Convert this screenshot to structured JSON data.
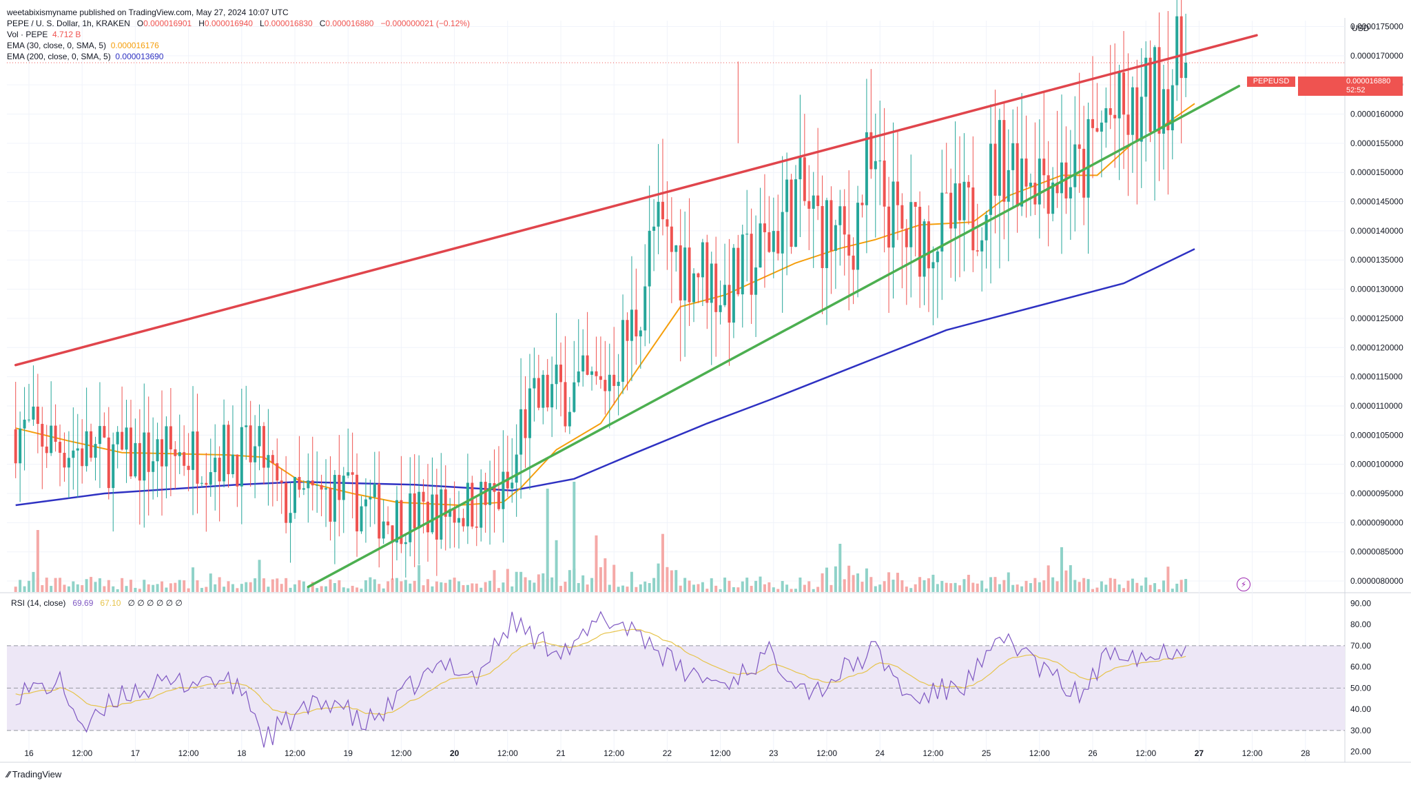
{
  "header": {
    "published": "weetabixismyname published on TradingView.com, May 27, 2024 10:07 UTC",
    "symbol_line": "PEPE / U. S. Dollar, 1h, KRAKEN",
    "ohlc": {
      "O_label": "O",
      "O": "0.000016901",
      "H_label": "H",
      "H": "0.000016940",
      "L_label": "L",
      "L": "0.000016830",
      "C_label": "C",
      "C": "0.000016880",
      "change": "−0.000000021 (−0.12%)"
    },
    "volume": {
      "label": "Vol · PEPE",
      "value": "4.712 B"
    },
    "ema30": {
      "label": "EMA (30, close, 0, SMA, 5)",
      "value": "0.000016176"
    },
    "ema200": {
      "label": "EMA (200, close, 0, SMA, 5)",
      "value": "0.000013690"
    }
  },
  "currency": "USD",
  "price_tag": {
    "symbol": "PEPEUSD",
    "value": "0.000016880",
    "countdown": "52:52"
  },
  "rsi": {
    "label": "RSI (14, close)",
    "value": "69.69",
    "ma_value": "67.10",
    "extra": "∅ ∅ ∅ ∅ ∅ ∅"
  },
  "footer": {
    "brand": "TradingView"
  },
  "colors": {
    "up": "#26a69a",
    "down": "#ef5350",
    "ema30": "#f59e0b",
    "ema200": "#2e31c2",
    "resistance": "#e0454c",
    "support": "#4caf50",
    "rsi": "#7e57c2",
    "rsi_ma": "#e6c34a",
    "vol_up": "#8fd2c8",
    "vol_down": "#f5a9a7",
    "rsi_band": "#ede7f6"
  },
  "chart_data": {
    "type": "candlestick",
    "interval": "1h",
    "y_axis": {
      "ticks": [
        "0.0000175000",
        "0.0000170000",
        "0.0000165000",
        "0.0000160000",
        "0.0000155000",
        "0.0000150000",
        "0.0000145000",
        "0.0000140000",
        "0.0000135000",
        "0.0000130000",
        "0.0000125000",
        "0.0000120000",
        "0.0000115000",
        "0.0000110000",
        "0.0000105000",
        "0.0000100000",
        "0.0000095000",
        "0.0000090000",
        "0.0000085000",
        "0.0000080000"
      ],
      "range": [
        7.8e-06,
        1.76e-05
      ]
    },
    "x_axis": {
      "ticks": [
        "16",
        "12:00",
        "17",
        "12:00",
        "18",
        "12:00",
        "19",
        "12:00",
        "20",
        "12:00",
        "21",
        "12:00",
        "22",
        "12:00",
        "23",
        "12:00",
        "24",
        "12:00",
        "25",
        "12:00",
        "26",
        "12:00",
        "27",
        "12:00",
        "28"
      ],
      "bold_ticks": [
        "20",
        "27"
      ]
    },
    "key_points": [
      {
        "t": 0,
        "price": 1.06e-05
      },
      {
        "t": 12,
        "price": 1.03e-05
      },
      {
        "t": 24,
        "price": 1.01e-05
      },
      {
        "t": 36,
        "price": 1.02e-05
      },
      {
        "t": 48,
        "price": 1.02e-05
      },
      {
        "t": 56,
        "price": 1.01e-05
      },
      {
        "t": 60,
        "price": 9.3e-06
      },
      {
        "t": 72,
        "price": 9.5e-06
      },
      {
        "t": 84,
        "price": 9.1e-06
      },
      {
        "t": 96,
        "price": 9.2e-06
      },
      {
        "t": 108,
        "price": 9.4e-06
      },
      {
        "t": 112,
        "price": 9.6e-06
      },
      {
        "t": 114,
        "price": 1.07e-05
      },
      {
        "t": 120,
        "price": 1.12e-05
      },
      {
        "t": 132,
        "price": 1.13e-05
      },
      {
        "t": 140,
        "price": 1.25e-05
      },
      {
        "t": 144,
        "price": 1.4e-05
      },
      {
        "t": 150,
        "price": 1.35e-05
      },
      {
        "t": 156,
        "price": 1.33e-05
      },
      {
        "t": 160,
        "price": 1.29e-05
      },
      {
        "t": 168,
        "price": 1.36e-05
      },
      {
        "t": 176,
        "price": 1.46e-05
      },
      {
        "t": 184,
        "price": 1.39e-05
      },
      {
        "t": 188,
        "price": 1.37e-05
      },
      {
        "t": 192,
        "price": 1.5e-05
      },
      {
        "t": 196,
        "price": 1.45e-05
      },
      {
        "t": 200,
        "price": 1.39e-05
      },
      {
        "t": 208,
        "price": 1.4e-05
      },
      {
        "t": 216,
        "price": 1.42e-05
      },
      {
        "t": 222,
        "price": 1.53e-05
      },
      {
        "t": 230,
        "price": 1.51e-05
      },
      {
        "t": 240,
        "price": 1.49e-05
      },
      {
        "t": 244,
        "price": 1.56e-05
      },
      {
        "t": 246,
        "price": 1.6e-05
      },
      {
        "t": 252,
        "price": 1.58e-05
      },
      {
        "t": 258,
        "price": 1.65e-05
      },
      {
        "t": 264,
        "price": 1.688e-05
      }
    ],
    "ema30": [
      {
        "t": 0,
        "price": 1.062e-05
      },
      {
        "t": 12,
        "price": 1.04e-05
      },
      {
        "t": 24,
        "price": 1.02e-05
      },
      {
        "t": 48,
        "price": 1.016e-05
      },
      {
        "t": 56,
        "price": 1.012e-05
      },
      {
        "t": 64,
        "price": 9.72e-06
      },
      {
        "t": 76,
        "price": 9.5e-06
      },
      {
        "t": 86,
        "price": 9.35e-06
      },
      {
        "t": 100,
        "price": 9.3e-06
      },
      {
        "t": 110,
        "price": 9.35e-06
      },
      {
        "t": 114,
        "price": 9.6e-06
      },
      {
        "t": 122,
        "price": 1.025e-05
      },
      {
        "t": 132,
        "price": 1.07e-05
      },
      {
        "t": 140,
        "price": 1.16e-05
      },
      {
        "t": 150,
        "price": 1.27e-05
      },
      {
        "t": 160,
        "price": 1.29e-05
      },
      {
        "t": 176,
        "price": 1.345e-05
      },
      {
        "t": 186,
        "price": 1.37e-05
      },
      {
        "t": 194,
        "price": 1.385e-05
      },
      {
        "t": 204,
        "price": 1.41e-05
      },
      {
        "t": 216,
        "price": 1.415e-05
      },
      {
        "t": 224,
        "price": 1.46e-05
      },
      {
        "t": 236,
        "price": 1.495e-05
      },
      {
        "t": 244,
        "price": 1.495e-05
      },
      {
        "t": 252,
        "price": 1.55e-05
      },
      {
        "t": 258,
        "price": 1.575e-05
      },
      {
        "t": 266,
        "price": 1.618e-05
      }
    ],
    "ema200": [
      {
        "t": 0,
        "price": 9.3e-06
      },
      {
        "t": 20,
        "price": 9.5e-06
      },
      {
        "t": 50,
        "price": 9.65e-06
      },
      {
        "t": 64,
        "price": 9.7e-06
      },
      {
        "t": 90,
        "price": 9.65e-06
      },
      {
        "t": 112,
        "price": 9.55e-06
      },
      {
        "t": 126,
        "price": 9.75e-06
      },
      {
        "t": 140,
        "price": 1.02e-05
      },
      {
        "t": 156,
        "price": 1.07e-05
      },
      {
        "t": 170,
        "price": 1.11e-05
      },
      {
        "t": 190,
        "price": 1.17e-05
      },
      {
        "t": 210,
        "price": 1.23e-05
      },
      {
        "t": 230,
        "price": 1.27e-05
      },
      {
        "t": 250,
        "price": 1.31e-05
      },
      {
        "t": 266,
        "price": 1.369e-05
      }
    ],
    "trendlines": [
      {
        "name": "resistance",
        "from": {
          "t": 0,
          "price": 1.17e-05
        },
        "to": {
          "t": 280,
          "price": 1.735e-05
        }
      },
      {
        "name": "support",
        "from": {
          "t": 66,
          "price": 7.9e-06
        },
        "to": {
          "t": 276,
          "price": 1.648e-05
        }
      }
    ],
    "spike": {
      "t": 163,
      "high": 1.69e-05
    },
    "rsi_panel": {
      "ticks": [
        "90.00",
        "80.00",
        "70.00",
        "60.00",
        "50.00",
        "40.00",
        "30.00",
        "20.00"
      ],
      "overbought": 70,
      "middle": 50,
      "oversold": 30,
      "key_points": [
        {
          "t": 0,
          "rsi": 48
        },
        {
          "t": 10,
          "rsi": 52
        },
        {
          "t": 16,
          "rsi": 30
        },
        {
          "t": 24,
          "rsi": 48
        },
        {
          "t": 36,
          "rsi": 52
        },
        {
          "t": 44,
          "rsi": 55
        },
        {
          "t": 52,
          "rsi": 48
        },
        {
          "t": 56,
          "rsi": 26
        },
        {
          "t": 64,
          "rsi": 38
        },
        {
          "t": 72,
          "rsi": 45
        },
        {
          "t": 78,
          "rsi": 32
        },
        {
          "t": 84,
          "rsi": 40
        },
        {
          "t": 90,
          "rsi": 52
        },
        {
          "t": 98,
          "rsi": 62
        },
        {
          "t": 104,
          "rsi": 55
        },
        {
          "t": 112,
          "rsi": 82
        },
        {
          "t": 118,
          "rsi": 72
        },
        {
          "t": 126,
          "rsi": 68
        },
        {
          "t": 132,
          "rsi": 83
        },
        {
          "t": 140,
          "rsi": 78
        },
        {
          "t": 150,
          "rsi": 58
        },
        {
          "t": 160,
          "rsi": 52
        },
        {
          "t": 170,
          "rsi": 66
        },
        {
          "t": 180,
          "rsi": 48
        },
        {
          "t": 188,
          "rsi": 60
        },
        {
          "t": 194,
          "rsi": 68
        },
        {
          "t": 202,
          "rsi": 44
        },
        {
          "t": 214,
          "rsi": 52
        },
        {
          "t": 224,
          "rsi": 74
        },
        {
          "t": 232,
          "rsi": 58
        },
        {
          "t": 240,
          "rsi": 46
        },
        {
          "t": 248,
          "rsi": 70
        },
        {
          "t": 256,
          "rsi": 64
        },
        {
          "t": 262,
          "rsi": 70
        },
        {
          "t": 266,
          "rsi": 69.69
        }
      ]
    }
  }
}
